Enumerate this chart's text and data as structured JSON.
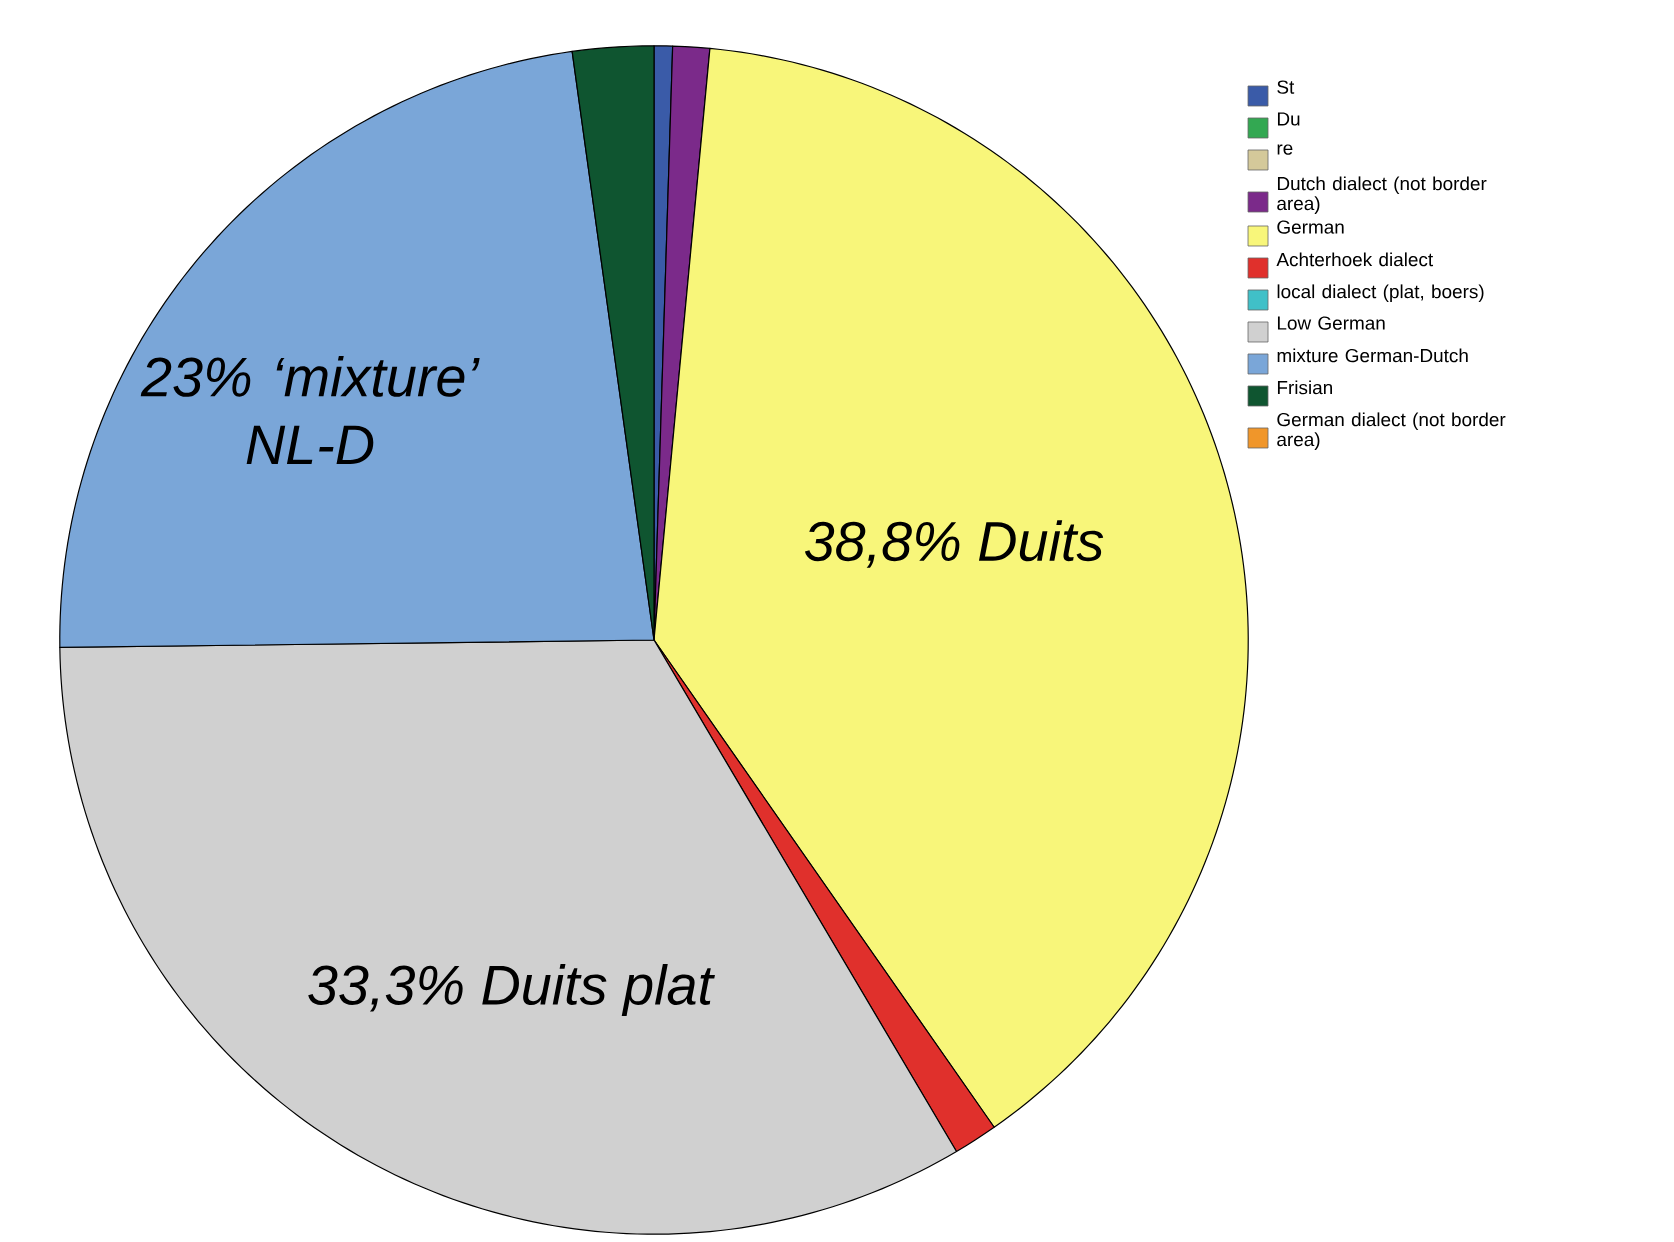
{
  "chart_data": {
    "type": "pie",
    "categories": [
      "St",
      "Du",
      "re",
      "Dutch dialect (not border area)",
      "German",
      "Achterhoek dialect",
      "local dialect (plat, boers)",
      "Low German",
      "mixture German-Dutch",
      "Frisian",
      "German dialect (not border area)"
    ],
    "values": [
      0.5,
      0,
      0,
      1,
      38.8,
      1.2,
      0,
      33.3,
      23,
      2.2,
      0
    ],
    "colors": [
      "#3a5ba8",
      "#33a852",
      "#d4c99a",
      "#7b2a8a",
      "#f8f67a",
      "#e0302c",
      "#40c0c8",
      "#d0d0d0",
      "#7aa6d8",
      "#0f5530",
      "#f0962a"
    ],
    "legend": "top right",
    "annotations": [
      "38,8% Duits",
      "33,3% Duits plat",
      "23% ‘mixture’ NL-D"
    ]
  }
}
